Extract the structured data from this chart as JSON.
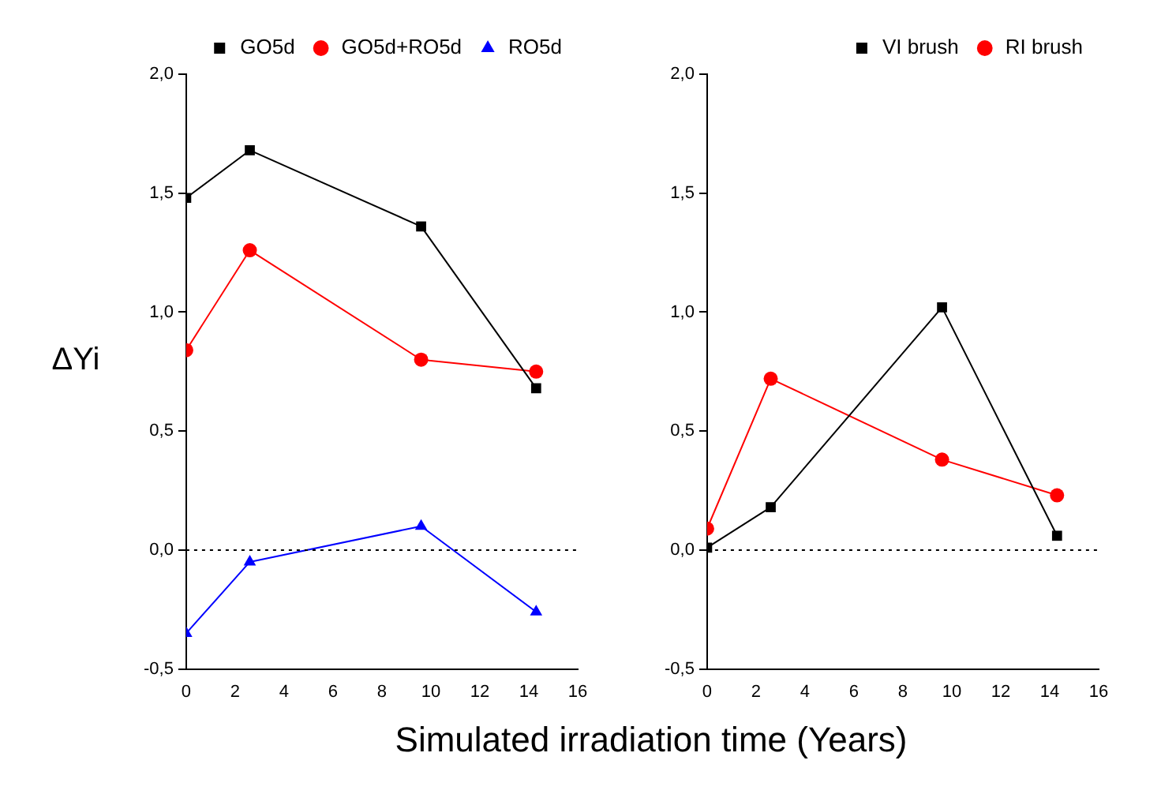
{
  "chart_data": [
    {
      "type": "line",
      "ylabel": "ΔYi",
      "xlabel": "Simulated irradiation time (Years)",
      "legend": "top right",
      "grid": false,
      "line_style": "solid",
      "xlim": [
        0,
        16
      ],
      "xticks": [
        0,
        2,
        4,
        6,
        8,
        10,
        12,
        14,
        16
      ],
      "ylim": [
        -0.5,
        2.0
      ],
      "yticks": [
        {
          "value": -0.5,
          "label": "-0,5"
        },
        {
          "value": 0,
          "label": "0,0"
        },
        {
          "value": 0.5,
          "label": "0,5"
        },
        {
          "value": 1.0,
          "label": "1,0"
        },
        {
          "value": 1.5,
          "label": "1,5"
        },
        {
          "value": 2.0,
          "label": "2,0"
        }
      ],
      "ref_lines": [
        {
          "axis": "y",
          "value": 0,
          "line_style": "dotted",
          "color": "#000000"
        }
      ],
      "series": [
        {
          "name": "GO5d",
          "color": "#000000",
          "marker": "square",
          "x": [
            0,
            2.6,
            9.6,
            14.3
          ],
          "values": [
            1.48,
            1.68,
            1.36,
            0.68
          ]
        },
        {
          "name": "GO5d+RO5d",
          "color": "#ff0000",
          "marker": "circle",
          "x": [
            0,
            2.6,
            9.6,
            14.3
          ],
          "values": [
            0.84,
            1.26,
            0.8,
            0.75
          ]
        },
        {
          "name": "RO5d",
          "color": "#0000ff",
          "marker": "triangle",
          "x": [
            0,
            2.6,
            9.6,
            14.3
          ],
          "values": [
            -0.35,
            -0.05,
            0.1,
            -0.26
          ]
        }
      ]
    },
    {
      "type": "line",
      "legend": "top right",
      "grid": false,
      "line_style": "solid",
      "xlim": [
        0,
        16
      ],
      "xticks": [
        0,
        2,
        4,
        6,
        8,
        10,
        12,
        14,
        16
      ],
      "ylim": [
        -0.5,
        2.0
      ],
      "yticks": [
        {
          "value": -0.5,
          "label": "-0,5"
        },
        {
          "value": 0,
          "label": "0,0"
        },
        {
          "value": 0.5,
          "label": "0,5"
        },
        {
          "value": 1.0,
          "label": "1,0"
        },
        {
          "value": 1.5,
          "label": "1,5"
        },
        {
          "value": 2.0,
          "label": "2,0"
        }
      ],
      "ref_lines": [
        {
          "axis": "y",
          "value": 0,
          "line_style": "dotted",
          "color": "#000000"
        }
      ],
      "series": [
        {
          "name": "VI brush",
          "color": "#000000",
          "marker": "square",
          "x": [
            0,
            2.6,
            9.6,
            14.3
          ],
          "values": [
            0.01,
            0.18,
            1.02,
            0.06
          ]
        },
        {
          "name": "RI brush",
          "color": "#ff0000",
          "marker": "circle",
          "x": [
            0,
            2.6,
            9.6,
            14.3
          ],
          "values": [
            0.09,
            0.72,
            0.38,
            0.23
          ]
        }
      ]
    }
  ]
}
